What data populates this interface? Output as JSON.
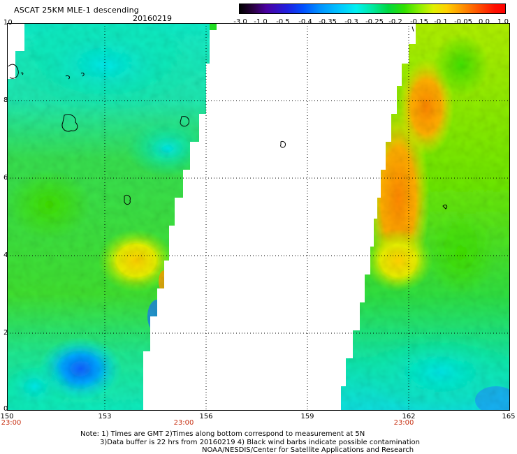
{
  "header": {
    "title": "ASCAT 25KM MLE-1 descending",
    "date": "20160219"
  },
  "colorbar": {
    "labels": [
      "-3.0",
      "-1.0",
      "-0.5",
      "-0.4",
      "-0.35",
      "-0.3",
      "-0.25",
      "-0.2",
      "-0.15",
      "-0.1",
      "-0.05",
      "0.0",
      "1.0"
    ]
  },
  "axes": {
    "y_labels": [
      "10",
      "8",
      "6",
      "4",
      "2",
      "0"
    ],
    "x_labels": [
      "150",
      "153",
      "156",
      "159",
      "162",
      "165"
    ],
    "time_labels": [
      "23:00",
      "23:00",
      "23:00"
    ]
  },
  "notes": {
    "line1": "Note: 1) Times are GMT 2)Times along bottom correspond to measurement at 5N",
    "line2": "3)Data buffer is 22 hrs from 20160219 4) Black wind barbs indicate possible contamination",
    "line3": "NOAA/NESDIS/Center for Satellite Applications and Research"
  },
  "colors": {
    "green": "#22dd22",
    "cyan": "#22eedd",
    "blue": "#1060ff",
    "yellow": "#e8f000",
    "orange": "#ff9a00",
    "time_red": "#c83214"
  }
}
